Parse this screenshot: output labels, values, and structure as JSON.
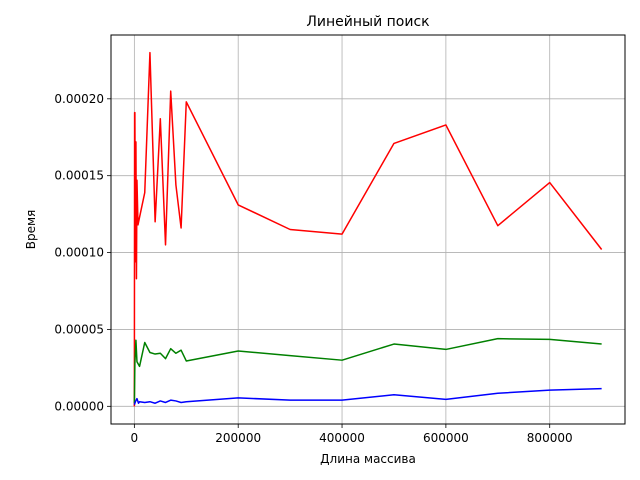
{
  "chart_data": {
    "type": "line",
    "title": "Линейный поиск",
    "xlabel": "Длина массива",
    "ylabel": "Время",
    "xlim": [
      -45000,
      945000
    ],
    "ylim": [
      -1.15e-05,
      0.0002415
    ],
    "xticks": [
      0,
      200000,
      400000,
      600000,
      800000
    ],
    "xtick_labels": [
      "0",
      "200000",
      "400000",
      "600000",
      "800000"
    ],
    "yticks": [
      0,
      5e-05,
      0.0001,
      0.00015,
      0.0002
    ],
    "ytick_labels": [
      "0.00000",
      "0.00005",
      "0.00010",
      "0.00015",
      "0.00020"
    ],
    "grid": true,
    "legend": "none",
    "series": [
      {
        "color": "#ff0000",
        "x": [
          0,
          100,
          500,
          1000,
          2000,
          3000,
          4000,
          5000,
          7000,
          10000,
          20000,
          30000,
          40000,
          50000,
          60000,
          70000,
          80000,
          90000,
          100000,
          200000,
          300000,
          400000,
          500000,
          600000,
          700000,
          800000,
          900000
        ],
        "y": [
          0.0,
          4.5e-05,
          0.000191,
          0.000191,
          9.4e-05,
          0.000172,
          8.3e-05,
          0.000147,
          0.000118,
          0.000123,
          0.000139,
          0.00023,
          0.00012,
          0.000187,
          0.000105,
          0.000205,
          0.000144,
          0.000116,
          0.000198,
          0.000131,
          0.000115,
          0.000112,
          0.000171,
          0.000183,
          0.0001175,
          0.0001455,
          0.000102
        ]
      },
      {
        "color": "#008000",
        "x": [
          0,
          1000,
          3000,
          5000,
          10000,
          20000,
          30000,
          40000,
          50000,
          60000,
          70000,
          80000,
          90000,
          100000,
          200000,
          300000,
          400000,
          500000,
          600000,
          700000,
          800000,
          900000
        ],
        "y": [
          2e-06,
          2.8e-05,
          4.3e-05,
          2.9e-05,
          2.6e-05,
          4.15e-05,
          3.5e-05,
          3.4e-05,
          3.45e-05,
          3.1e-05,
          3.75e-05,
          3.45e-05,
          3.65e-05,
          2.95e-05,
          3.6e-05,
          3.3e-05,
          3e-05,
          4.05e-05,
          3.7e-05,
          4.4e-05,
          4.35e-05,
          4.05e-05
        ]
      },
      {
        "color": "#0000ff",
        "x": [
          0,
          2000,
          5000,
          8000,
          10000,
          20000,
          30000,
          40000,
          50000,
          60000,
          70000,
          80000,
          90000,
          100000,
          200000,
          300000,
          400000,
          500000,
          600000,
          700000,
          800000,
          900000
        ],
        "y": [
          1e-06,
          3e-06,
          5e-06,
          2e-06,
          3e-06,
          2.5e-06,
          3e-06,
          2e-06,
          3.5e-06,
          2.5e-06,
          4e-06,
          3.5e-06,
          2.5e-06,
          3e-06,
          5.5e-06,
          4e-06,
          4e-06,
          7.5e-06,
          4.5e-06,
          8.5e-06,
          1.05e-05,
          1.15e-05
        ]
      }
    ]
  }
}
